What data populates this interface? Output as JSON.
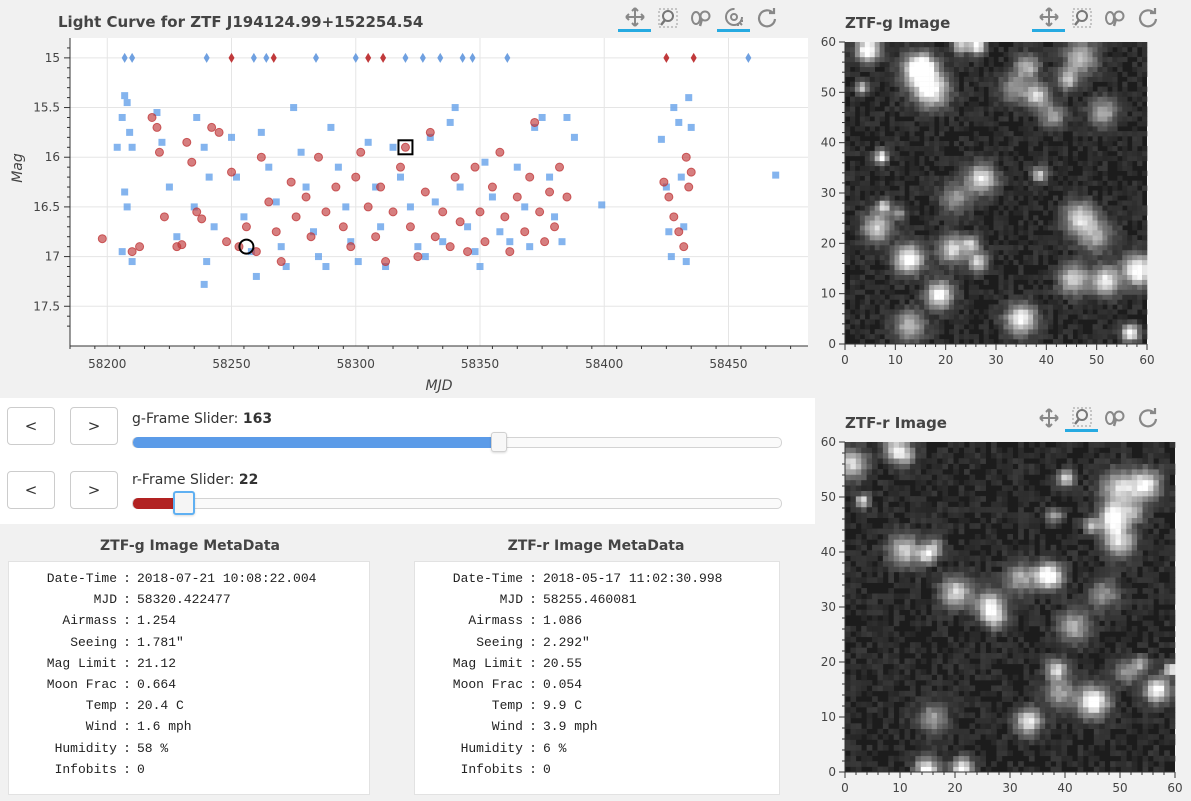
{
  "lightcurve": {
    "title": "Light Curve for ZTF J194124.99+152254.54",
    "chart_data": {
      "type": "scatter",
      "title": "Light Curve for ZTF J194124.99+152254.54",
      "xlabel": "MJD",
      "ylabel": "Mag",
      "xlim": [
        58185,
        58482
      ],
      "ylim": [
        17.9,
        14.8
      ],
      "y_inverted": true,
      "xticks": [
        58200,
        58250,
        58300,
        58350,
        58400,
        58450
      ],
      "yticks": [
        15,
        15.5,
        16,
        16.5,
        17,
        17.5
      ],
      "grid": true,
      "series": [
        {
          "color": "#5b9be8",
          "marker": "square",
          "values": [
            [
              58207,
              15.38
            ],
            [
              58208,
              15.45
            ],
            [
              58206,
              15.6
            ],
            [
              58209,
              15.75
            ],
            [
              58210,
              15.9
            ],
            [
              58204,
              15.9
            ],
            [
              58207,
              16.35
            ],
            [
              58208,
              16.5
            ],
            [
              58206,
              16.95
            ],
            [
              58210,
              17.05
            ],
            [
              58220,
              15.55
            ],
            [
              58222,
              15.85
            ],
            [
              58225,
              16.3
            ],
            [
              58228,
              16.8
            ],
            [
              58236,
              15.6
            ],
            [
              58239,
              15.9
            ],
            [
              58241,
              16.2
            ],
            [
              58235,
              16.5
            ],
            [
              58243,
              16.7
            ],
            [
              58240,
              17.05
            ],
            [
              58239,
              17.28
            ],
            [
              58250,
              15.8
            ],
            [
              58252,
              16.2
            ],
            [
              58255,
              16.6
            ],
            [
              58258,
              16.95
            ],
            [
              58260,
              17.2
            ],
            [
              58262,
              15.75
            ],
            [
              58265,
              16.1
            ],
            [
              58268,
              16.45
            ],
            [
              58270,
              16.9
            ],
            [
              58272,
              17.1
            ],
            [
              58275,
              15.5
            ],
            [
              58278,
              15.95
            ],
            [
              58280,
              16.3
            ],
            [
              58283,
              16.75
            ],
            [
              58285,
              17.0
            ],
            [
              58288,
              17.1
            ],
            [
              58290,
              15.7
            ],
            [
              58293,
              16.1
            ],
            [
              58296,
              16.5
            ],
            [
              58298,
              16.85
            ],
            [
              58301,
              17.05
            ],
            [
              58305,
              15.85
            ],
            [
              58308,
              16.3
            ],
            [
              58310,
              16.7
            ],
            [
              58312,
              17.1
            ],
            [
              58315,
              15.9
            ],
            [
              58318,
              16.2
            ],
            [
              58322,
              16.5
            ],
            [
              58325,
              16.9
            ],
            [
              58328,
              17.0
            ],
            [
              58330,
              15.8
            ],
            [
              58332,
              16.45
            ],
            [
              58335,
              16.85
            ],
            [
              58338,
              15.65
            ],
            [
              58340,
              15.5
            ],
            [
              58342,
              16.3
            ],
            [
              58345,
              16.7
            ],
            [
              58348,
              16.95
            ],
            [
              58350,
              17.1
            ],
            [
              58352,
              16.05
            ],
            [
              58355,
              16.4
            ],
            [
              58358,
              16.75
            ],
            [
              58362,
              16.85
            ],
            [
              58365,
              16.1
            ],
            [
              58368,
              16.5
            ],
            [
              58370,
              16.9
            ],
            [
              58372,
              15.7
            ],
            [
              58375,
              15.6
            ],
            [
              58378,
              16.2
            ],
            [
              58380,
              16.6
            ],
            [
              58383,
              16.85
            ],
            [
              58385,
              15.6
            ],
            [
              58388,
              15.8
            ],
            [
              58399,
              16.48
            ],
            [
              58423,
              15.82
            ],
            [
              58425,
              16.3
            ],
            [
              58426,
              16.75
            ],
            [
              58427,
              17.0
            ],
            [
              58428,
              15.5
            ],
            [
              58430,
              15.65
            ],
            [
              58431,
              16.2
            ],
            [
              58432,
              16.7
            ],
            [
              58433,
              17.05
            ],
            [
              58434,
              15.4
            ],
            [
              58435,
              15.7
            ],
            [
              58469,
              16.18
            ]
          ]
        },
        {
          "color": "#c0393b",
          "marker": "circle",
          "values": [
            [
              58198,
              16.82
            ],
            [
              58210,
              16.95
            ],
            [
              58213,
              16.9
            ],
            [
              58218,
              15.6
            ],
            [
              58220,
              15.7
            ],
            [
              58221,
              15.95
            ],
            [
              58223,
              16.6
            ],
            [
              58228,
              16.9
            ],
            [
              58230,
              16.88
            ],
            [
              58232,
              15.85
            ],
            [
              58234,
              16.05
            ],
            [
              58236,
              16.55
            ],
            [
              58238,
              16.62
            ],
            [
              58242,
              15.7
            ],
            [
              58245,
              15.75
            ],
            [
              58248,
              16.85
            ],
            [
              58250,
              16.15
            ],
            [
              58253,
              16.9
            ],
            [
              58256,
              16.7
            ],
            [
              58260,
              16.95
            ],
            [
              58262,
              16.0
            ],
            [
              58265,
              16.45
            ],
            [
              58268,
              16.75
            ],
            [
              58270,
              17.05
            ],
            [
              58274,
              16.25
            ],
            [
              58276,
              16.6
            ],
            [
              58280,
              16.4
            ],
            [
              58282,
              16.8
            ],
            [
              58285,
              16.0
            ],
            [
              58288,
              16.55
            ],
            [
              58292,
              16.3
            ],
            [
              58295,
              16.7
            ],
            [
              58298,
              16.9
            ],
            [
              58300,
              16.2
            ],
            [
              58302,
              15.95
            ],
            [
              58305,
              16.5
            ],
            [
              58308,
              16.8
            ],
            [
              58310,
              16.3
            ],
            [
              58312,
              17.05
            ],
            [
              58315,
              16.55
            ],
            [
              58318,
              16.1
            ],
            [
              58320,
              15.9
            ],
            [
              58322,
              16.7
            ],
            [
              58325,
              17.0
            ],
            [
              58328,
              16.35
            ],
            [
              58330,
              15.75
            ],
            [
              58332,
              16.8
            ],
            [
              58335,
              16.55
            ],
            [
              58338,
              16.9
            ],
            [
              58340,
              16.2
            ],
            [
              58342,
              16.65
            ],
            [
              58345,
              16.95
            ],
            [
              58348,
              16.1
            ],
            [
              58350,
              16.55
            ],
            [
              58352,
              16.85
            ],
            [
              58355,
              16.3
            ],
            [
              58358,
              15.95
            ],
            [
              58360,
              16.6
            ],
            [
              58362,
              16.95
            ],
            [
              58365,
              16.4
            ],
            [
              58368,
              16.75
            ],
            [
              58370,
              16.2
            ],
            [
              58372,
              15.65
            ],
            [
              58374,
              16.55
            ],
            [
              58376,
              16.85
            ],
            [
              58378,
              16.35
            ],
            [
              58380,
              16.7
            ],
            [
              58382,
              16.1
            ],
            [
              58385,
              16.4
            ],
            [
              58424,
              16.25
            ],
            [
              58426,
              16.4
            ],
            [
              58428,
              16.6
            ],
            [
              58430,
              16.75
            ],
            [
              58432,
              16.9
            ],
            [
              58433,
              16.0
            ],
            [
              58434,
              16.3
            ],
            [
              58435,
              16.15
            ]
          ]
        }
      ],
      "upper_limits": [
        {
          "color": "#6fa0e0",
          "mjd": [
            58207,
            58210,
            58240,
            58259,
            58264,
            58284,
            58300,
            58320,
            58327,
            58334,
            58343,
            58347,
            58361,
            58458
          ]
        },
        {
          "color": "#c0393b",
          "mjd": [
            58250,
            58267,
            58305,
            58311,
            58425,
            58436
          ]
        }
      ],
      "selected": [
        {
          "marker": "square",
          "x": 58320,
          "y": 15.9
        },
        {
          "marker": "circle",
          "x": 58256,
          "y": 16.9
        }
      ]
    }
  },
  "toolbar_tools": [
    "pan-icon",
    "box-zoom-icon",
    "wheel-zoom-icon",
    "lasso-icon",
    "reset-icon"
  ],
  "g_image": {
    "title": "ZTF-g Image",
    "xlim": [
      0,
      60
    ],
    "ylim": [
      0,
      60
    ],
    "xticks": [
      0,
      10,
      20,
      30,
      40,
      50,
      60
    ],
    "yticks": [
      0,
      10,
      20,
      30,
      40,
      50,
      60
    ],
    "seed": 7
  },
  "r_image": {
    "title": "ZTF-r Image",
    "xlim": [
      0,
      60
    ],
    "ylim": [
      0,
      60
    ],
    "xticks": [
      0,
      10,
      20,
      30,
      40,
      50,
      60
    ],
    "yticks": [
      0,
      10,
      20,
      30,
      40,
      50,
      60
    ],
    "seed": 19
  },
  "g_slider": {
    "label": "g-Frame Slider: ",
    "value": "163",
    "fraction": 0.565,
    "color": "#5b9be8"
  },
  "r_slider": {
    "label": "r-Frame Slider: ",
    "value": "22",
    "fraction": 0.078,
    "color": "#b22222"
  },
  "buttons": {
    "prev": "<",
    "next": ">"
  },
  "g_meta": {
    "title": "ZTF-g Image MetaData",
    "rows": [
      {
        "k": "Date-Time",
        "v": "2018-07-21 10:08:22.004"
      },
      {
        "k": "MJD",
        "v": "58320.422477"
      },
      {
        "k": "Airmass",
        "v": "1.254"
      },
      {
        "k": "Seeing",
        "v": "1.781\""
      },
      {
        "k": "Mag Limit",
        "v": "21.12"
      },
      {
        "k": "Moon Frac",
        "v": "0.664"
      },
      {
        "k": "Temp",
        "v": "20.4 C"
      },
      {
        "k": "Wind",
        "v": "1.6 mph"
      },
      {
        "k": "Humidity",
        "v": "58 %"
      },
      {
        "k": "Infobits",
        "v": "0"
      }
    ]
  },
  "r_meta": {
    "title": "ZTF-r Image MetaData",
    "rows": [
      {
        "k": "Date-Time",
        "v": "2018-05-17 11:02:30.998"
      },
      {
        "k": "MJD",
        "v": "58255.460081"
      },
      {
        "k": "Airmass",
        "v": "1.086"
      },
      {
        "k": "Seeing",
        "v": "2.292\""
      },
      {
        "k": "Mag Limit",
        "v": "20.55"
      },
      {
        "k": "Moon Frac",
        "v": "0.054"
      },
      {
        "k": "Temp",
        "v": "9.9 C"
      },
      {
        "k": "Wind",
        "v": "3.9 mph"
      },
      {
        "k": "Humidity",
        "v": "6 %"
      },
      {
        "k": "Infobits",
        "v": "0"
      }
    ]
  }
}
